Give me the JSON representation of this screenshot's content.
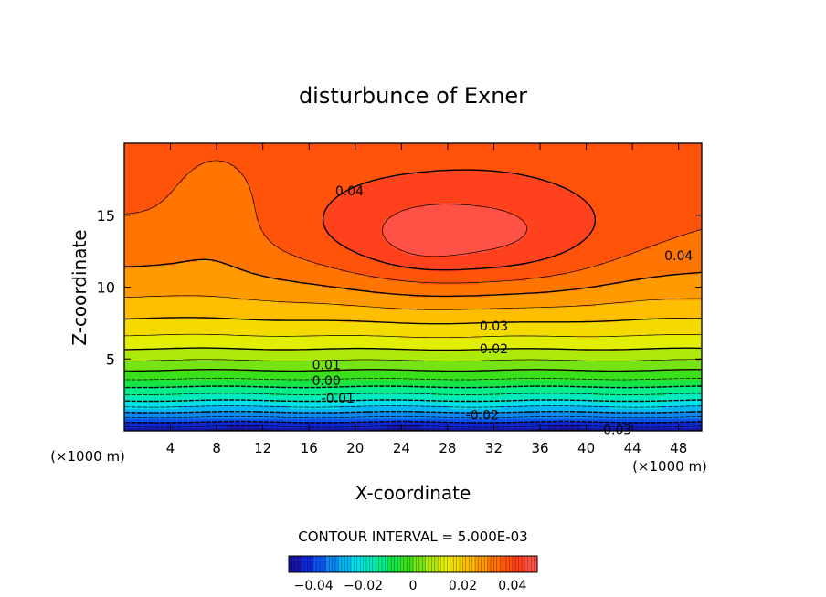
{
  "chart_data": {
    "type": "heatmap",
    "title": "disturbunce of Exner",
    "xlabel": "X-coordinate",
    "ylabel": "Z-coordinate",
    "x_unit": "(×1000 m)",
    "y_unit": "(×1000 m)",
    "xlim": [
      0,
      50
    ],
    "ylim": [
      0,
      20
    ],
    "x_ticks": [
      4,
      8,
      12,
      16,
      20,
      24,
      28,
      32,
      36,
      40,
      44,
      48
    ],
    "y_ticks": [
      5,
      10,
      15
    ],
    "contour_interval_text": "CONTOUR INTERVAL = 5.000E-03",
    "contour_interval": 0.005,
    "value_range": [
      -0.05,
      0.05
    ],
    "colorbar": {
      "ticks": [
        -0.04,
        -0.02,
        0,
        0.02,
        0.04
      ],
      "tick_labels": [
        "−0.04",
        "−0.02",
        "0",
        "0.02",
        "0.04"
      ]
    },
    "contour_labels": [
      {
        "text": "0.04",
        "x": 19.5,
        "z": 16.7
      },
      {
        "text": "0.04",
        "x": 48.0,
        "z": 12.2
      },
      {
        "text": "0.03",
        "x": 32.0,
        "z": 7.3
      },
      {
        "text": "0.02",
        "x": 32.0,
        "z": 5.7
      },
      {
        "text": "0.01",
        "x": 17.5,
        "z": 4.6
      },
      {
        "text": "0.00",
        "x": 17.5,
        "z": 3.5
      },
      {
        "text": "-0.01",
        "x": 18.5,
        "z": 2.3
      },
      {
        "text": "-0.02",
        "x": 31.0,
        "z": 1.1
      },
      {
        "text": "-0.03",
        "x": 42.5,
        "z": 0.1
      }
    ],
    "field_model": {
      "description": "approximate Exner disturbance field",
      "max": 0.048,
      "max_location": {
        "x": 26.5,
        "z": 13.5
      },
      "min": -0.05,
      "min_location": "bottom boundary"
    },
    "colormap": [
      "#1a0b8c",
      "#0a2ee6",
      "#0b8ff5",
      "#00e1ee",
      "#00f09a",
      "#21df1d",
      "#8fe612",
      "#eef000",
      "#ffbd00",
      "#ff7a00",
      "#ff3c10",
      "#ff5a5a"
    ]
  }
}
